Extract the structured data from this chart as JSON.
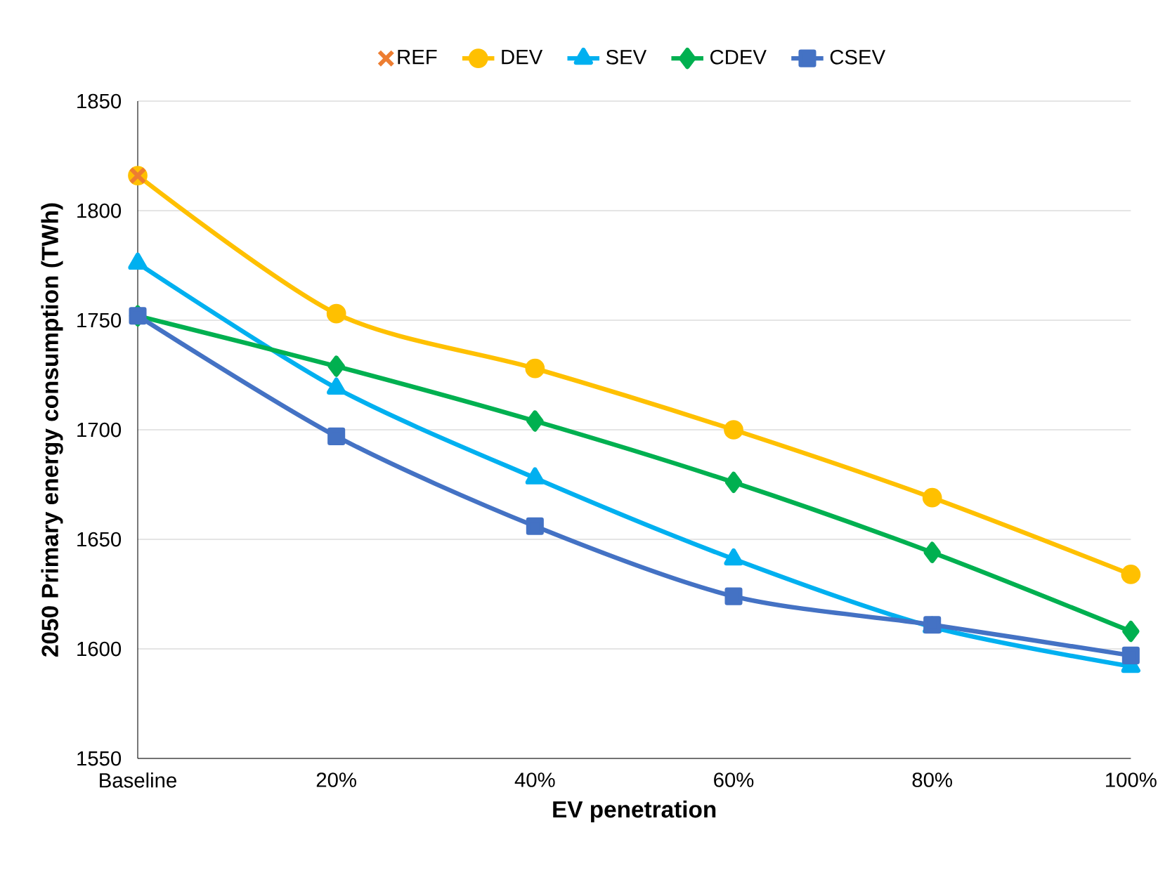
{
  "chart_data": {
    "type": "line",
    "xlabel": "EV penetration",
    "ylabel": "2050 Primary energy consumption (TWh)",
    "categories": [
      "Baseline",
      "20%",
      "40%",
      "60%",
      "80%",
      "100%"
    ],
    "series": [
      {
        "name": "REF",
        "type": "scatter",
        "color": "#ed7d31",
        "marker": "cross",
        "values": [
          1816,
          null,
          null,
          null,
          null,
          null
        ]
      },
      {
        "name": "DEV",
        "color": "#ffc000",
        "marker": "circle",
        "values": [
          1816,
          1753,
          1728,
          1700,
          1669,
          1634
        ]
      },
      {
        "name": "SEV",
        "color": "#00b0f0",
        "marker": "triangle",
        "values": [
          1776,
          1719,
          1678,
          1641,
          1610,
          1592
        ]
      },
      {
        "name": "CDEV",
        "color": "#00b050",
        "marker": "diamond",
        "values": [
          1752,
          1729,
          1704,
          1676,
          1644,
          1608
        ]
      },
      {
        "name": "CSEV",
        "color": "#4472c4",
        "marker": "square",
        "values": [
          1752,
          1697,
          1656,
          1624,
          1611,
          1597
        ]
      }
    ],
    "ylim": [
      1550,
      1850
    ],
    "yticks": [
      1550,
      1600,
      1650,
      1700,
      1750,
      1800,
      1850
    ],
    "grid": "y",
    "legend": "top",
    "line_style": "solid"
  }
}
